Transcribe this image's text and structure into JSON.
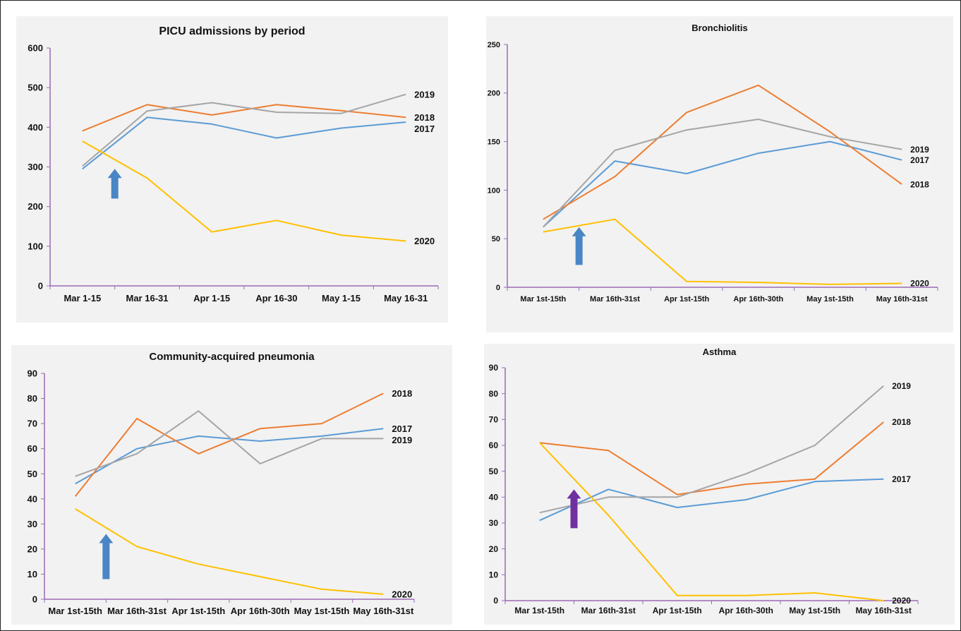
{
  "chart_data": [
    {
      "type": "line",
      "title": "PICU admissions by period",
      "categories": [
        "Mar 1-15",
        "Mar 16-31",
        "Apr 1-15",
        "Apr 16-30",
        "May 1-15",
        "May 16-31"
      ],
      "yticks": [
        "0",
        "100",
        "200",
        "300",
        "400",
        "500",
        "600"
      ],
      "ylim": [
        0,
        600
      ],
      "series": [
        {
          "name": "2017",
          "color": "#5b9bd5",
          "values": [
            295,
            425,
            408,
            373,
            398,
            413
          ]
        },
        {
          "name": "2018",
          "color": "#ed7d31",
          "values": [
            391,
            457,
            431,
            457,
            442,
            425
          ]
        },
        {
          "name": "2019",
          "color": "#a5a5a5",
          "values": [
            302,
            441,
            462,
            438,
            435,
            483
          ]
        },
        {
          "name": "2020",
          "color": "#ffc000",
          "values": [
            365,
            272,
            136,
            165,
            128,
            113
          ]
        }
      ],
      "arrow": {
        "color": "#4a86c5",
        "between_categories": [
          0,
          1
        ],
        "y_from": 220,
        "y_to": 295
      },
      "grid": false,
      "legend": "line-end labels"
    },
    {
      "type": "line",
      "title": "Bronchiolitis",
      "categories": [
        "Mar 1st-15th",
        "Mar 16th-31st",
        "Apr 1st-15th",
        "Apr 16th-30th",
        "May 1st-15th",
        "May 16th-31st"
      ],
      "yticks": [
        "0",
        "50",
        "100",
        "150",
        "200",
        "250"
      ],
      "ylim": [
        0,
        250
      ],
      "series": [
        {
          "name": "2017",
          "color": "#5b9bd5",
          "values": [
            62,
            130,
            117,
            138,
            150,
            131
          ]
        },
        {
          "name": "2018",
          "color": "#ed7d31",
          "values": [
            70,
            114,
            180,
            208,
            160,
            106
          ]
        },
        {
          "name": "2019",
          "color": "#a5a5a5",
          "values": [
            62,
            141,
            162,
            173,
            155,
            142
          ]
        },
        {
          "name": "2020",
          "color": "#ffc000",
          "values": [
            57,
            70,
            6,
            5,
            3,
            4
          ]
        }
      ],
      "arrow": {
        "color": "#4a86c5",
        "between_categories": [
          0,
          1
        ],
        "y_from": 23,
        "y_to": 62
      },
      "grid": false,
      "legend": "line-end labels"
    },
    {
      "type": "line",
      "title": "Community-acquired pneumonia",
      "categories": [
        "Mar 1st-15th",
        "Mar 16th-31st",
        "Apr 1st-15th",
        "Apr 16th-30th",
        "May 1st-15th",
        "May 16th-31st"
      ],
      "yticks": [
        "0",
        "10",
        "20",
        "30",
        "40",
        "50",
        "60",
        "70",
        "80",
        "90"
      ],
      "ylim": [
        0,
        90
      ],
      "series": [
        {
          "name": "2017",
          "color": "#5b9bd5",
          "values": [
            46,
            60,
            65,
            63,
            65,
            68
          ]
        },
        {
          "name": "2018",
          "color": "#ed7d31",
          "values": [
            41,
            72,
            58,
            68,
            70,
            82
          ]
        },
        {
          "name": "2019",
          "color": "#a5a5a5",
          "values": [
            49,
            58,
            75,
            54,
            64,
            64
          ]
        },
        {
          "name": "2020",
          "color": "#ffc000",
          "values": [
            36,
            21,
            14,
            9,
            4,
            2
          ]
        }
      ],
      "arrow": {
        "color": "#4a86c5",
        "between_categories": [
          0,
          1
        ],
        "y_from": 8,
        "y_to": 26
      },
      "grid": false,
      "legend": "line-end labels"
    },
    {
      "type": "line",
      "title": "Asthma",
      "categories": [
        "Mar 1st-15th",
        "Mar 16th-31st",
        "Apr 1st-15th",
        "Apr 16th-30th",
        "May 1st-15th",
        "May 16th-31st"
      ],
      "yticks": [
        "0",
        "10",
        "20",
        "30",
        "40",
        "50",
        "60",
        "70",
        "80",
        "90"
      ],
      "ylim": [
        0,
        90
      ],
      "series": [
        {
          "name": "2017",
          "color": "#5b9bd5",
          "values": [
            31,
            43,
            36,
            39,
            46,
            47
          ]
        },
        {
          "name": "2018",
          "color": "#ed7d31",
          "values": [
            61,
            58,
            41,
            45,
            47,
            69
          ]
        },
        {
          "name": "2019",
          "color": "#a5a5a5",
          "values": [
            34,
            40,
            40,
            49,
            60,
            83
          ]
        },
        {
          "name": "2020",
          "color": "#ffc000",
          "values": [
            61,
            33,
            2,
            2,
            3,
            0
          ]
        }
      ],
      "arrow": {
        "color": "#7030a0",
        "between_categories": [
          0,
          1
        ],
        "y_from": 28,
        "y_to": 43
      },
      "grid": false,
      "legend": "line-end labels"
    }
  ]
}
